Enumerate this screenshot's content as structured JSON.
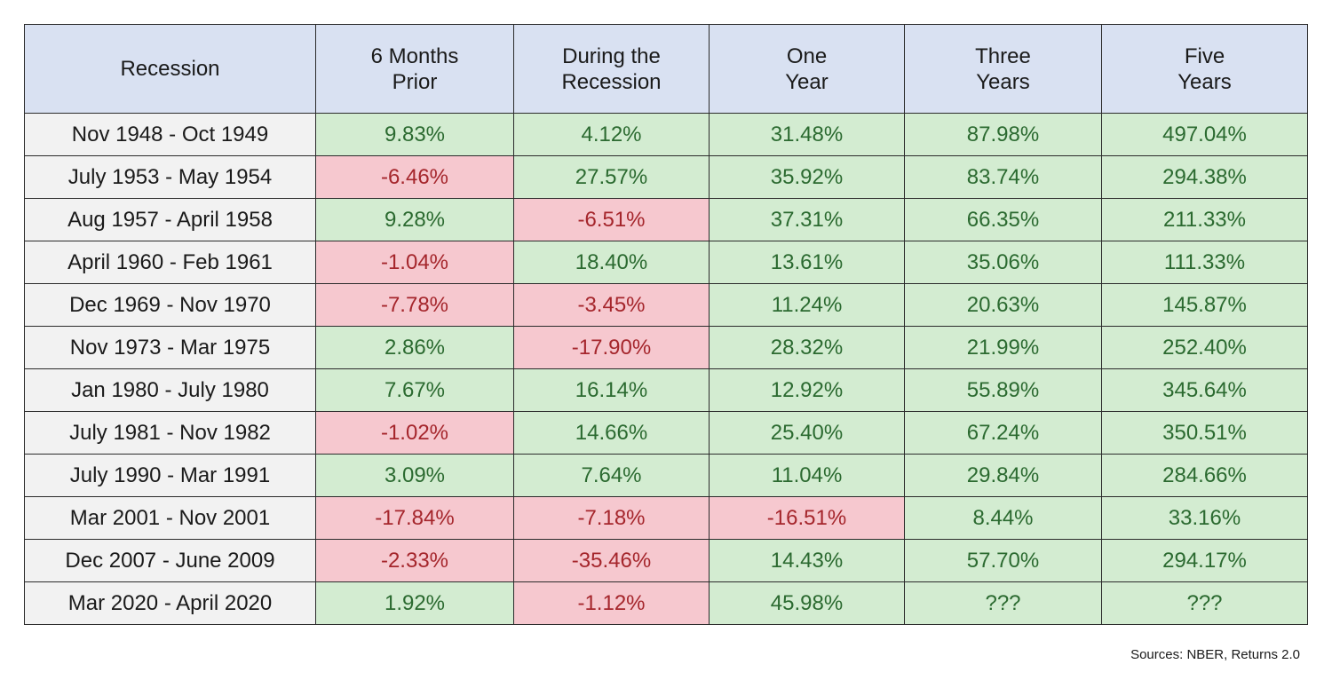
{
  "table": {
    "header": [
      "Recession",
      "6 Months\nPrior",
      "During the\nRecession",
      "One\nYear",
      "Three\nYears",
      "Five\nYears"
    ],
    "rows": [
      [
        "Nov 1948 - Oct 1949",
        "9.83%",
        "4.12%",
        "31.48%",
        "87.98%",
        "497.04%"
      ],
      [
        "July 1953 - May 1954",
        "-6.46%",
        "27.57%",
        "35.92%",
        "83.74%",
        "294.38%"
      ],
      [
        "Aug 1957 - April 1958",
        "9.28%",
        "-6.51%",
        "37.31%",
        "66.35%",
        "211.33%"
      ],
      [
        "April 1960 - Feb 1961",
        "-1.04%",
        "18.40%",
        "13.61%",
        "35.06%",
        "111.33%"
      ],
      [
        "Dec 1969 - Nov 1970",
        "-7.78%",
        "-3.45%",
        "11.24%",
        "20.63%",
        "145.87%"
      ],
      [
        "Nov 1973 - Mar 1975",
        "2.86%",
        "-17.90%",
        "28.32%",
        "21.99%",
        "252.40%"
      ],
      [
        "Jan 1980 - July 1980",
        "7.67%",
        "16.14%",
        "12.92%",
        "55.89%",
        "345.64%"
      ],
      [
        "July 1981 - Nov 1982",
        "-1.02%",
        "14.66%",
        "25.40%",
        "67.24%",
        "350.51%"
      ],
      [
        "July 1990 - Mar 1991",
        "3.09%",
        "7.64%",
        "11.04%",
        "29.84%",
        "284.66%"
      ],
      [
        "Mar 2001 - Nov 2001",
        "-17.84%",
        "-7.18%",
        "-16.51%",
        "8.44%",
        "33.16%"
      ],
      [
        "Dec 2007 - June 2009",
        "-2.33%",
        "-35.46%",
        "14.43%",
        "57.70%",
        "294.17%"
      ],
      [
        "Mar 2020 - April 2020",
        "1.92%",
        "-1.12%",
        "45.98%",
        "???",
        "???"
      ]
    ]
  },
  "source": "Sources: NBER, Returns 2.0"
}
